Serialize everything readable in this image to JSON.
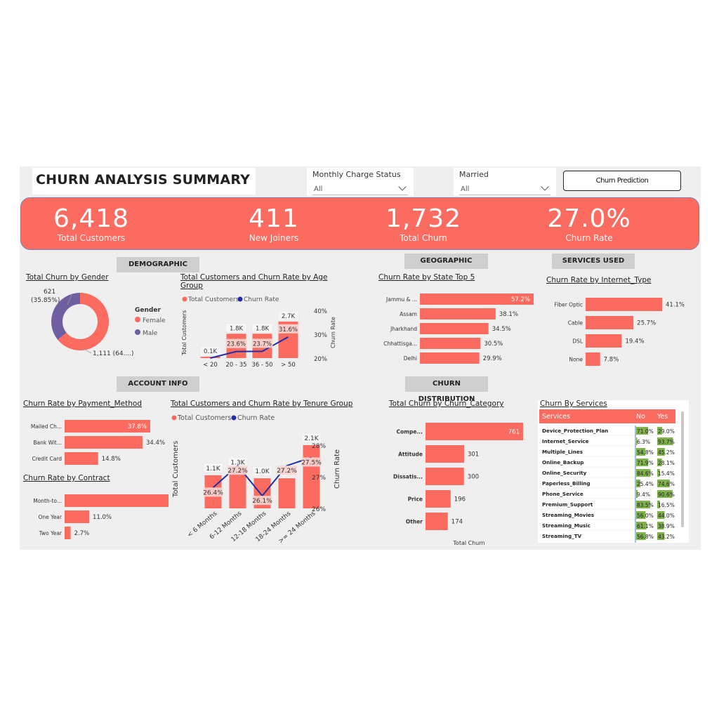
{
  "header": {
    "title": "CHURN ANALYSIS SUMMARY",
    "slicers": [
      {
        "label": "Monthly Charge Status",
        "value": "All"
      },
      {
        "label": "Married",
        "value": "All"
      }
    ],
    "prediction_button": "Churn Prediction"
  },
  "kpis": [
    {
      "value": "6,418",
      "label": "Total Customers"
    },
    {
      "value": "411",
      "label": "New Joiners"
    },
    {
      "value": "1,732",
      "label": "Total Churn"
    },
    {
      "value": "27.0%",
      "label": "Churn Rate"
    }
  ],
  "sections": {
    "demographic": "DEMOGRAPHIC",
    "account": "ACCOUNT INFO",
    "geographic": "GEOGRAPHIC",
    "services_used": "SERVICES USED",
    "churn_distribution": "CHURN DISTRIBUTION"
  },
  "colors": {
    "accent": "#fb6b5f",
    "male": "#6f5fa0",
    "line": "#1f2ea8",
    "yes_bar": "#7fb24a",
    "panel": "#efefef"
  },
  "chart_data": [
    {
      "id": "gender",
      "type": "pie",
      "title": "Total Churn by Gender",
      "legend_title": "Gender",
      "legend_position": "right",
      "labels": [
        "Female",
        "Male"
      ],
      "values": [
        1111,
        621
      ],
      "data_labels": [
        "1,111 (64....)",
        "621\n(35.85%)"
      ]
    },
    {
      "id": "age",
      "type": "bar",
      "title": "Total Customers and Churn Rate by Age Group",
      "legend": [
        "Total Customers",
        "Churn Rate"
      ],
      "categories": [
        "< 20",
        "20 - 35",
        "36 - 50",
        "> 50"
      ],
      "series": [
        {
          "name": "Total Customers",
          "values": [
            100,
            1800,
            1800,
            2700
          ],
          "labels": [
            "0.1K",
            "1.8K",
            "1.8K",
            "2.7K"
          ]
        },
        {
          "name": "Churn Rate",
          "type": "line",
          "values": [
            20.0,
            23.6,
            23.7,
            31.6
          ],
          "labels": [
            "",
            "23.6%",
            "23.7%",
            "31.6%"
          ]
        }
      ],
      "ylabel": "Total Customers",
      "y2label": "Churn Rate",
      "y2ticks": [
        "40%",
        "30%",
        "20%"
      ],
      "y2lim": [
        20,
        40
      ]
    },
    {
      "id": "state",
      "type": "bar",
      "orientation": "horizontal",
      "title": "Churn Rate by State Top 5",
      "categories": [
        "Jammu & ...",
        "Assam",
        "Jharkhand",
        "Chhattisga...",
        "Delhi"
      ],
      "values": [
        57.2,
        38.1,
        34.5,
        30.5,
        29.9
      ],
      "labels": [
        "57.2%",
        "38.1%",
        "34.5%",
        "30.5%",
        "29.9%"
      ]
    },
    {
      "id": "internet",
      "type": "bar",
      "orientation": "horizontal",
      "title": "Churn Rate by Internet_Type",
      "categories": [
        "Fiber Optic",
        "Cable",
        "DSL",
        "None"
      ],
      "values": [
        41.1,
        25.7,
        19.4,
        7.8
      ],
      "labels": [
        "41.1%",
        "25.7%",
        "19.4%",
        "7.8%"
      ]
    },
    {
      "id": "payment",
      "type": "bar",
      "orientation": "horizontal",
      "title": "Churn Rate by Payment_Method",
      "categories": [
        "Mailed Ch...",
        "Bank Wit...",
        "Credit Card"
      ],
      "values": [
        37.8,
        34.4,
        14.8
      ],
      "labels": [
        "37.8%",
        "34.4%",
        "14.8%"
      ]
    },
    {
      "id": "contract",
      "type": "bar",
      "orientation": "horizontal",
      "title": "Churn Rate by Contract",
      "categories": [
        "Month-to...",
        "One Year",
        "Two Year"
      ],
      "values": [
        46.5,
        11.0,
        2.7
      ],
      "labels": [
        "46.5%",
        "11.0%",
        "2.7%"
      ]
    },
    {
      "id": "tenure",
      "type": "bar",
      "title": "Total Customers and Churn Rate by Tenure Group",
      "legend": [
        "Total Customers",
        "Churn Rate"
      ],
      "categories": [
        "< 6 Months",
        "6-12 Months",
        "12-18 Months",
        "18-24 Months",
        ">= 24 Months"
      ],
      "series": [
        {
          "name": "Total Customers",
          "values": [
            1100,
            1300,
            1000,
            1000,
            2100
          ],
          "labels": [
            "1.1K",
            "1.3K",
            "1.0K",
            "1.0K",
            "2.1K"
          ]
        },
        {
          "name": "Churn Rate",
          "type": "line",
          "values": [
            26.4,
            27.2,
            26.1,
            27.2,
            27.5
          ],
          "labels": [
            "26.4%",
            "27.2%",
            "26.1%",
            "27.2%",
            "27.5%"
          ]
        }
      ],
      "ylabel": "Total Customers",
      "y2label": "Churn Rate",
      "y2ticks": [
        "28%",
        "27%",
        "26%"
      ],
      "y2lim": [
        26,
        28
      ]
    },
    {
      "id": "category",
      "type": "bar",
      "orientation": "horizontal",
      "title": "Total Churn by Churn_Category",
      "xlabel": "Total Churn",
      "categories": [
        "Compe...",
        "Attitude",
        "Dissatis...",
        "Price",
        "Other"
      ],
      "values": [
        761,
        301,
        300,
        196,
        174
      ],
      "labels": [
        "761",
        "301",
        "300",
        "196",
        "174"
      ]
    },
    {
      "id": "services",
      "type": "table",
      "title": "Churn By Services",
      "columns": [
        "Services",
        "No",
        "Yes"
      ],
      "rows": [
        {
          "service": "Device_Protection_Plan",
          "no": 71.0,
          "yes": 29.0,
          "no_label": "71.0%",
          "yes_label": "29.0%"
        },
        {
          "service": "Internet_Service",
          "no": 6.3,
          "yes": 93.7,
          "no_label": "6.3%",
          "yes_label": "93.7%"
        },
        {
          "service": "Multiple_Lines",
          "no": 54.8,
          "yes": 45.2,
          "no_label": "54.8%",
          "yes_label": "45.2%"
        },
        {
          "service": "Online_Backup",
          "no": 71.9,
          "yes": 28.1,
          "no_label": "71.9%",
          "yes_label": "28.1%"
        },
        {
          "service": "Online_Security",
          "no": 84.6,
          "yes": 15.4,
          "no_label": "84.6%",
          "yes_label": "15.4%"
        },
        {
          "service": "Paperless_Billing",
          "no": 25.4,
          "yes": 74.6,
          "no_label": "25.4%",
          "yes_label": "74.6%"
        },
        {
          "service": "Phone_Service",
          "no": 9.4,
          "yes": 90.6,
          "no_label": "9.4%",
          "yes_label": "90.6%"
        },
        {
          "service": "Premium_Support",
          "no": 83.5,
          "yes": 16.5,
          "no_label": "83.5%",
          "yes_label": "16.5%"
        },
        {
          "service": "Streaming_Movies",
          "no": 56.0,
          "yes": 44.0,
          "no_label": "56.0%",
          "yes_label": "44.0%"
        },
        {
          "service": "Streaming_Music",
          "no": 61.1,
          "yes": 38.9,
          "no_label": "61.1%",
          "yes_label": "38.9%"
        },
        {
          "service": "Streaming_TV",
          "no": 56.8,
          "yes": 43.2,
          "no_label": "56.8%",
          "yes_label": "43.2%"
        }
      ]
    }
  ]
}
